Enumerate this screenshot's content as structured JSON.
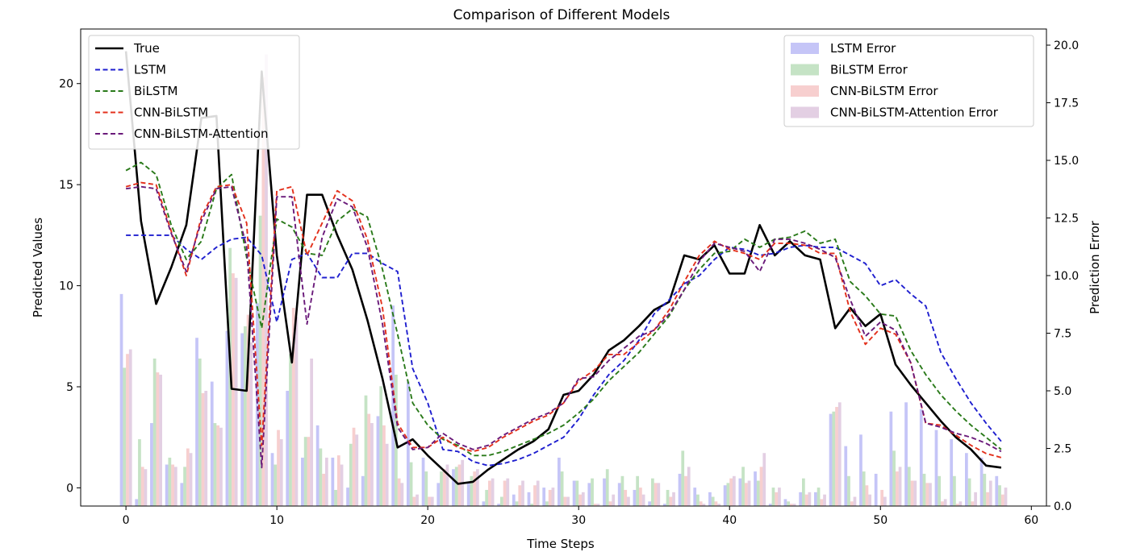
{
  "chart_data": {
    "type": "line",
    "title": "Comparison of Different Models",
    "xlabel": "Time Steps",
    "ylabel": "Predicted Values",
    "y2label": "Prediction Error",
    "xlim": [
      -3,
      61
    ],
    "ylim": [
      -0.9,
      22.7
    ],
    "y2lim": [
      0.0,
      20.7
    ],
    "x_ticks": [
      0,
      10,
      20,
      30,
      40,
      50,
      60
    ],
    "y_ticks": [
      0,
      5,
      10,
      15,
      20
    ],
    "y2_ticks": [
      "0.0",
      "2.5",
      "5.0",
      "7.5",
      "10.0",
      "12.5",
      "15.0",
      "17.5",
      "20.0"
    ],
    "grid": false,
    "legend_lines_position": "upper-left",
    "legend_bars_position": "upper-right",
    "x": [
      0,
      1,
      2,
      3,
      4,
      5,
      6,
      7,
      8,
      9,
      10,
      11,
      12,
      13,
      14,
      15,
      16,
      17,
      18,
      19,
      20,
      21,
      22,
      23,
      24,
      25,
      26,
      27,
      28,
      29,
      30,
      31,
      32,
      33,
      34,
      35,
      36,
      37,
      38,
      39,
      40,
      41,
      42,
      43,
      44,
      45,
      46,
      47,
      48,
      49,
      50,
      51,
      52,
      53,
      54,
      55,
      56,
      57,
      58
    ],
    "series": [
      {
        "name": "True",
        "style": "solid",
        "color": "#000000",
        "values": [
          21.6,
          13.2,
          9.1,
          10.9,
          13.0,
          18.3,
          18.4,
          4.9,
          4.8,
          20.6,
          11.5,
          6.2,
          14.5,
          14.5,
          12.5,
          10.8,
          8.3,
          5.4,
          2.0,
          2.4,
          1.6,
          0.9,
          0.2,
          0.3,
          0.9,
          1.4,
          1.9,
          2.3,
          2.9,
          4.6,
          4.8,
          5.6,
          6.8,
          7.3,
          8.0,
          8.8,
          9.2,
          11.5,
          11.3,
          12.0,
          10.6,
          10.6,
          13.0,
          11.5,
          12.2,
          11.5,
          11.3,
          7.9,
          8.9,
          8.0,
          8.6,
          6.1,
          5.1,
          4.2,
          3.3,
          2.5,
          1.9,
          1.1,
          1.0
        ]
      },
      {
        "name": "LSTM",
        "style": "dashed",
        "color": "#1f1fcf",
        "values": [
          12.5,
          12.5,
          12.5,
          12.5,
          11.8,
          11.3,
          11.9,
          12.3,
          12.4,
          11.5,
          8.2,
          11.3,
          11.6,
          10.4,
          10.4,
          11.6,
          11.6,
          11.1,
          10.7,
          5.9,
          4.2,
          1.9,
          1.8,
          1.3,
          1.1,
          1.2,
          1.4,
          1.7,
          2.1,
          2.5,
          3.4,
          4.6,
          5.6,
          6.3,
          7.3,
          8.6,
          9.3,
          10.1,
          10.5,
          11.3,
          11.9,
          11.8,
          11.5,
          11.6,
          11.9,
          12.0,
          11.9,
          11.9,
          11.5,
          11.1,
          10.0,
          10.3,
          9.6,
          9.0,
          6.7,
          5.4,
          4.2,
          3.2,
          2.3
        ]
      },
      {
        "name": "BiLSTM",
        "style": "dashed",
        "color": "#2a7a1a",
        "values": [
          15.7,
          16.1,
          15.5,
          13.0,
          11.3,
          12.2,
          14.8,
          15.5,
          11.4,
          7.9,
          13.3,
          12.9,
          11.6,
          11.5,
          13.2,
          13.8,
          13.4,
          10.8,
          7.6,
          4.2,
          3.1,
          2.4,
          2.1,
          1.6,
          1.6,
          1.8,
          2.1,
          2.4,
          2.7,
          3.1,
          3.7,
          4.4,
          5.3,
          6.0,
          6.7,
          7.6,
          8.5,
          9.8,
          10.8,
          11.6,
          11.7,
          12.3,
          11.9,
          12.3,
          12.4,
          12.7,
          12.1,
          12.3,
          10.2,
          9.5,
          8.6,
          8.5,
          6.8,
          5.6,
          4.6,
          3.8,
          3.1,
          2.5,
          1.9
        ]
      },
      {
        "name": "CNN-BiLSTM",
        "style": "dashed",
        "color": "#e3301c",
        "values": [
          14.9,
          15.1,
          15.0,
          12.7,
          10.5,
          13.4,
          14.9,
          15.0,
          13.1,
          2.1,
          14.7,
          14.9,
          11.5,
          13.1,
          14.7,
          14.2,
          12.3,
          8.9,
          3.2,
          2.0,
          2.0,
          2.5,
          2.0,
          1.8,
          2.0,
          2.5,
          2.9,
          3.3,
          3.6,
          4.2,
          5.3,
          5.8,
          6.6,
          6.6,
          7.2,
          7.8,
          8.8,
          10.2,
          11.5,
          12.2,
          11.8,
          11.6,
          11.3,
          12.1,
          12.1,
          12.0,
          11.6,
          11.6,
          8.7,
          7.1,
          7.9,
          7.6,
          6.2,
          3.2,
          3.1,
          2.6,
          2.1,
          1.7,
          1.5
        ]
      },
      {
        "name": "CNN-BiLSTM-Attention",
        "style": "dashed",
        "color": "#6a1a7a",
        "values": [
          14.8,
          14.9,
          14.8,
          12.6,
          10.7,
          13.2,
          14.8,
          14.9,
          11.9,
          1.0,
          14.4,
          14.4,
          8.1,
          12.4,
          14.3,
          13.9,
          11.9,
          8.1,
          3.0,
          1.9,
          2.0,
          2.7,
          2.2,
          1.9,
          2.1,
          2.6,
          3.0,
          3.4,
          3.7,
          4.2,
          5.4,
          5.5,
          6.3,
          6.9,
          7.5,
          7.8,
          8.6,
          9.8,
          11.2,
          12.1,
          11.9,
          11.7,
          10.7,
          12.3,
          12.3,
          12.1,
          11.8,
          11.4,
          9.3,
          7.5,
          8.2,
          7.8,
          6.2,
          3.2,
          3.0,
          2.7,
          2.5,
          2.2,
          1.8
        ]
      }
    ],
    "error_series": [
      {
        "name": "LSTM Error",
        "color": "#8c8cf0",
        "values": [
          9.2,
          0.3,
          3.6,
          1.8,
          1.0,
          7.3,
          5.4,
          7.6,
          7.5,
          8.8,
          2.3,
          5.0,
          2.1,
          3.5,
          2.1,
          0.8,
          1.3,
          3.9,
          8.7,
          5.4,
          2.1,
          1.0,
          1.6,
          1.0,
          0.2,
          0.1,
          0.5,
          0.6,
          0.8,
          2.1,
          1.1,
          1.0,
          1.2,
          1.0,
          0.7,
          0.2,
          0.1,
          1.4,
          0.8,
          0.6,
          0.9,
          1.2,
          1.5,
          0.1,
          0.3,
          0.6,
          0.6,
          4.0,
          2.6,
          3.1,
          1.4,
          4.1,
          4.5,
          4.2,
          3.3,
          2.9,
          2.3,
          2.1,
          1.3
        ]
      },
      {
        "name": "BiLSTM Error",
        "color": "#8cc88c",
        "values": [
          6.0,
          2.9,
          6.4,
          2.1,
          1.7,
          6.4,
          3.6,
          11.2,
          7.8,
          12.6,
          1.8,
          6.6,
          3.0,
          2.5,
          0.7,
          2.7,
          4.8,
          5.2,
          5.7,
          1.9,
          1.5,
          1.5,
          1.7,
          1.3,
          0.7,
          0.4,
          0.2,
          0.1,
          0.2,
          1.5,
          1.1,
          1.2,
          1.6,
          1.3,
          1.3,
          1.2,
          0.7,
          2.4,
          0.5,
          0.4,
          1.0,
          1.7,
          1.1,
          0.8,
          0.2,
          1.2,
          0.8,
          4.1,
          1.3,
          1.5,
          0.0,
          2.4,
          1.7,
          1.4,
          1.3,
          1.3,
          1.2,
          1.4,
          0.9
        ]
      },
      {
        "name": "CNN-BiLSTM Error",
        "color": "#f0a0a0",
        "values": [
          6.6,
          1.7,
          5.8,
          1.8,
          2.5,
          4.9,
          3.5,
          10.1,
          8.3,
          18.6,
          3.3,
          8.6,
          3.0,
          1.4,
          2.2,
          3.4,
          4.0,
          3.5,
          1.2,
          0.4,
          0.4,
          1.6,
          1.8,
          1.5,
          1.1,
          1.1,
          0.9,
          0.9,
          0.7,
          0.4,
          0.5,
          0.1,
          0.2,
          0.7,
          0.8,
          1.0,
          0.4,
          1.3,
          0.2,
          0.2,
          1.2,
          1.0,
          1.7,
          0.6,
          0.1,
          0.5,
          0.3,
          4.3,
          0.2,
          0.9,
          0.7,
          1.5,
          1.1,
          1.0,
          0.2,
          0.1,
          0.2,
          0.6,
          0.5
        ]
      },
      {
        "name": "CNN-BiLSTM-Attention Error",
        "color": "#c8a0c8",
        "values": [
          6.8,
          1.6,
          5.7,
          1.7,
          2.3,
          5.0,
          3.4,
          9.9,
          7.1,
          19.6,
          2.9,
          8.2,
          6.4,
          2.1,
          1.8,
          3.1,
          3.6,
          2.7,
          1.0,
          0.5,
          0.4,
          1.8,
          2.0,
          1.6,
          1.2,
          1.2,
          1.1,
          1.1,
          0.8,
          0.4,
          0.6,
          0.1,
          0.5,
          0.4,
          0.5,
          1.0,
          0.6,
          1.7,
          0.1,
          0.1,
          1.3,
          1.1,
          2.3,
          0.8,
          0.1,
          0.6,
          0.5,
          4.5,
          0.4,
          0.5,
          0.4,
          1.7,
          1.1,
          1.0,
          0.3,
          0.2,
          0.6,
          1.1,
          0.8
        ]
      }
    ]
  }
}
